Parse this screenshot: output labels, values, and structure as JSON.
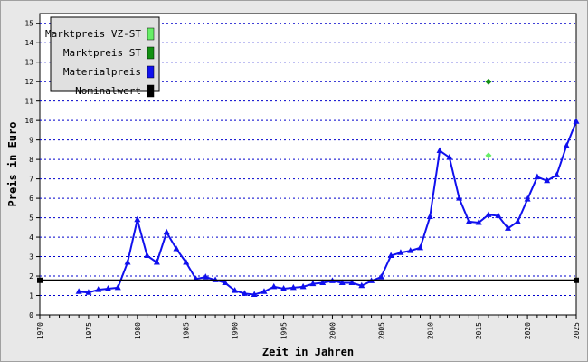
{
  "chart_data": {
    "type": "line",
    "xlabel": "Zeit in Jahren",
    "ylabel": "Preis in Euro",
    "xlim": [
      1970,
      2025
    ],
    "ylim": [
      0,
      15.5
    ],
    "x_ticks": [
      1970,
      1975,
      1980,
      1985,
      1990,
      1995,
      2000,
      2005,
      2010,
      2015,
      2020,
      2025
    ],
    "y_ticks": [
      0,
      1,
      2,
      3,
      4,
      5,
      6,
      7,
      8,
      9,
      10,
      11,
      12,
      13,
      14,
      15
    ],
    "grid": "horizontal dotted",
    "legend_position": "top-left",
    "series": [
      {
        "name": "Marktpreis VZ-ST",
        "color": "#66ee66",
        "marker": "diamond",
        "x": [
          2016
        ],
        "y": [
          8.2
        ]
      },
      {
        "name": "Marktpreis ST",
        "color": "#129012",
        "marker": "diamond",
        "x": [
          2016
        ],
        "y": [
          12.0
        ]
      },
      {
        "name": "Materialpreis",
        "color": "#1010ee",
        "marker": "triangle",
        "x": [
          1974,
          1975,
          1976,
          1977,
          1978,
          1979,
          1980,
          1981,
          1982,
          1983,
          1984,
          1985,
          1986,
          1987,
          1988,
          1989,
          1990,
          1991,
          1992,
          1993,
          1994,
          1995,
          1996,
          1997,
          1998,
          1999,
          2000,
          2001,
          2002,
          2003,
          2004,
          2005,
          2006,
          2007,
          2008,
          2009,
          2010,
          2011,
          2012,
          2013,
          2014,
          2015,
          2016,
          2017,
          2018,
          2019,
          2020,
          2021,
          2022,
          2023,
          2024,
          2025
        ],
        "y": [
          1.2,
          1.15,
          1.3,
          1.35,
          1.4,
          2.7,
          4.9,
          3.05,
          2.7,
          4.25,
          3.4,
          2.7,
          1.85,
          1.95,
          1.8,
          1.65,
          1.25,
          1.1,
          1.05,
          1.2,
          1.45,
          1.35,
          1.4,
          1.45,
          1.6,
          1.65,
          1.75,
          1.65,
          1.65,
          1.5,
          1.75,
          1.95,
          3.05,
          3.2,
          3.3,
          3.45,
          5.05,
          8.45,
          8.1,
          6.0,
          4.8,
          4.75,
          5.15,
          5.1,
          4.45,
          4.8,
          5.95,
          7.1,
          6.9,
          7.2,
          8.7,
          9.95
        ]
      },
      {
        "name": "Nominalwert",
        "color": "#000000",
        "marker": "square",
        "x": [
          1970,
          2025
        ],
        "y": [
          1.78,
          1.78
        ]
      }
    ]
  }
}
